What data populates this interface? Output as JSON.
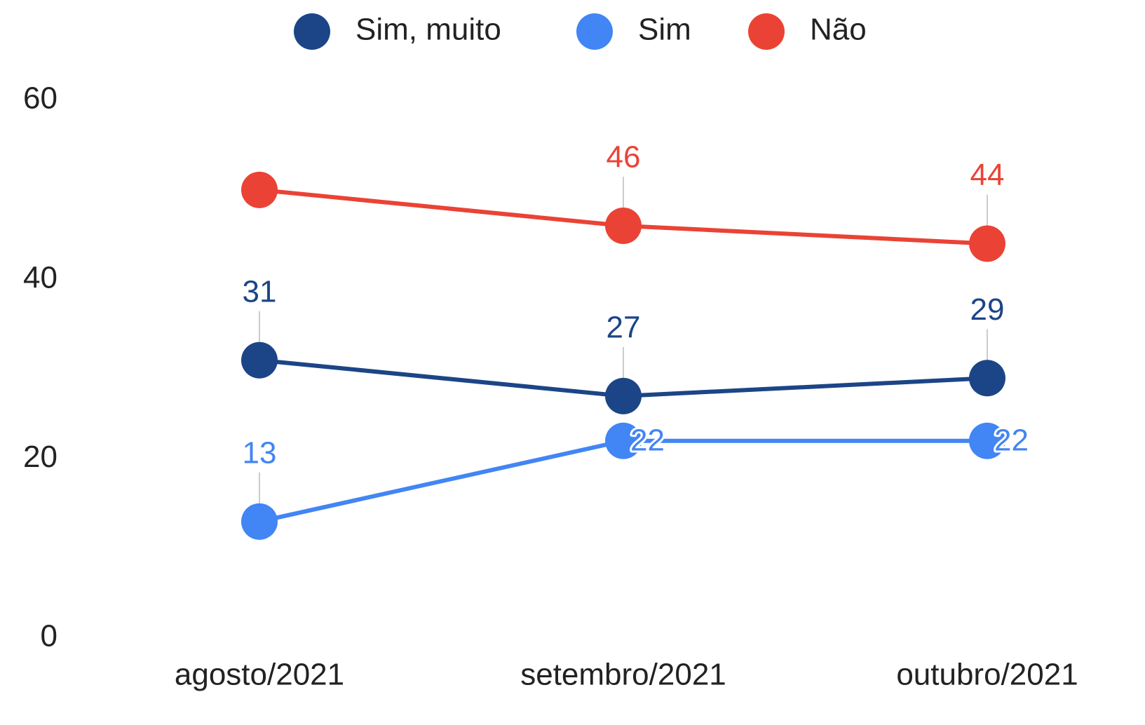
{
  "chart_data": {
    "type": "line",
    "categories": [
      "agosto/2021",
      "setembro/2021",
      "outubro/2021"
    ],
    "series": [
      {
        "name": "Sim, muito",
        "color": "#1c4587",
        "values": [
          31,
          27,
          29
        ],
        "label_positions": [
          "above",
          "above",
          "above"
        ]
      },
      {
        "name": "Sim",
        "color": "#4285f4",
        "values": [
          13,
          22,
          22
        ],
        "label_positions": [
          "above",
          "right",
          "right"
        ]
      },
      {
        "name": "Não",
        "color": "#ea4335",
        "values": [
          50,
          46,
          44
        ],
        "value_labels": [
          null,
          "46",
          "44"
        ],
        "label_positions": [
          "above",
          "above",
          "above"
        ]
      }
    ],
    "ylim": [
      0,
      60
    ],
    "yticks": [
      0,
      20,
      40,
      60
    ],
    "grid": false,
    "legend": "top"
  }
}
